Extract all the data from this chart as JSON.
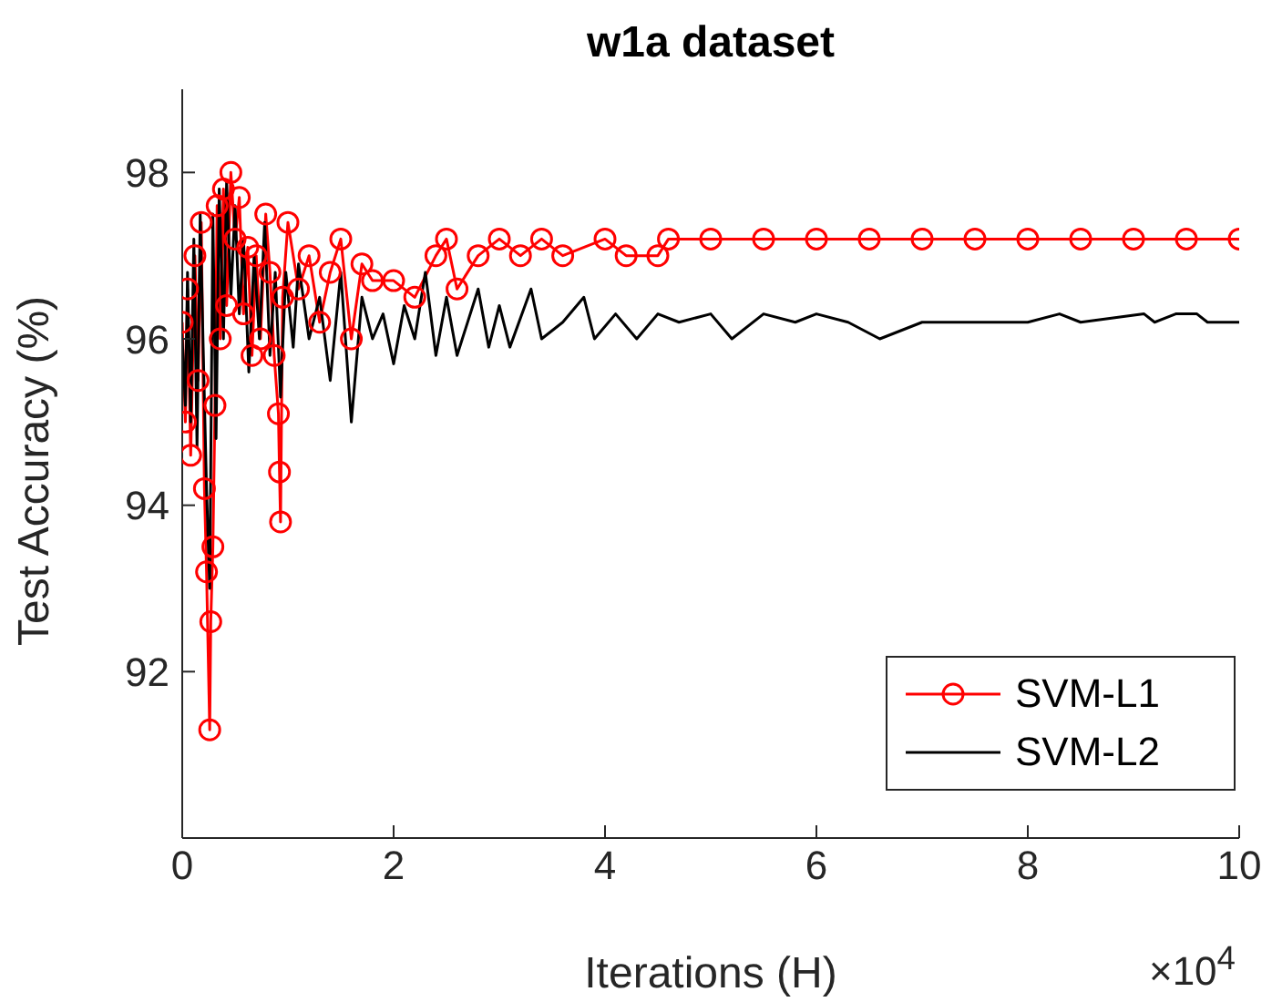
{
  "chart_data": {
    "type": "line",
    "title": "w1a dataset",
    "xlabel": "Iterations (H)",
    "ylabel": "Test Accuracy (%)",
    "xlim": [
      0,
      10
    ],
    "xticks": [
      0,
      2,
      4,
      6,
      8,
      10
    ],
    "ylim": [
      90,
      99
    ],
    "yticks": [
      92,
      94,
      96,
      98
    ],
    "grid": false,
    "legend": "bottom right",
    "annotations": [
      "×10$^{4}$"
    ],
    "series": [
      {
        "name": "SVM-L1",
        "color": "#ff0000",
        "marker": "circle",
        "x": [
          0,
          0.03,
          0.05,
          0.08,
          0.12,
          0.15,
          0.18,
          0.21,
          0.23,
          0.26,
          0.27,
          0.29,
          0.31,
          0.33,
          0.36,
          0.39,
          0.42,
          0.46,
          0.5,
          0.54,
          0.58,
          0.62,
          0.66,
          0.7,
          0.74,
          0.79,
          0.83,
          0.87,
          0.91,
          0.92,
          0.93,
          0.95,
          1.0,
          1.1,
          1.2,
          1.3,
          1.4,
          1.5,
          1.6,
          1.7,
          1.8,
          2.0,
          2.2,
          2.4,
          2.5,
          2.6,
          2.8,
          3.0,
          3.2,
          3.4,
          3.6,
          4.0,
          4.2,
          4.5,
          4.6,
          5.0,
          5.5,
          6.0,
          6.5,
          7.0,
          7.5,
          8.0,
          8.5,
          9.0,
          9.5,
          10.0
        ],
        "values": [
          96.2,
          95.0,
          96.6,
          94.6,
          97.0,
          95.5,
          97.4,
          94.2,
          93.2,
          91.3,
          92.6,
          93.5,
          95.2,
          97.6,
          96.0,
          97.8,
          96.4,
          98.0,
          97.2,
          97.7,
          96.3,
          97.1,
          95.8,
          97.0,
          96.0,
          97.5,
          96.8,
          95.8,
          95.1,
          94.4,
          93.8,
          96.5,
          97.4,
          96.6,
          97.0,
          96.2,
          96.8,
          97.2,
          96.0,
          96.9,
          96.7,
          96.7,
          96.5,
          97.0,
          97.2,
          96.6,
          97.0,
          97.2,
          97.0,
          97.2,
          97.0,
          97.2,
          97.0,
          97.0,
          97.2,
          97.2,
          97.2,
          97.2,
          97.2,
          97.2,
          97.2,
          97.2,
          97.2,
          97.2,
          97.2,
          97.2
        ]
      },
      {
        "name": "SVM-L2",
        "color": "#000000",
        "marker": "none",
        "x": [
          0,
          0.03,
          0.05,
          0.08,
          0.11,
          0.14,
          0.17,
          0.2,
          0.23,
          0.26,
          0.29,
          0.32,
          0.35,
          0.39,
          0.42,
          0.46,
          0.5,
          0.54,
          0.58,
          0.63,
          0.68,
          0.73,
          0.78,
          0.83,
          0.88,
          0.93,
          0.98,
          1.05,
          1.1,
          1.2,
          1.3,
          1.4,
          1.5,
          1.6,
          1.7,
          1.8,
          1.9,
          2.0,
          2.1,
          2.2,
          2.3,
          2.4,
          2.5,
          2.6,
          2.8,
          2.9,
          3.0,
          3.1,
          3.3,
          3.4,
          3.6,
          3.8,
          3.9,
          4.1,
          4.3,
          4.5,
          4.7,
          5.0,
          5.2,
          5.5,
          5.8,
          6.0,
          6.3,
          6.6,
          7.0,
          8.0,
          8.3,
          8.5,
          9.1,
          9.2,
          9.4,
          9.6,
          9.7,
          10.0
        ],
        "values": [
          96.0,
          95.2,
          96.8,
          95.0,
          97.2,
          94.7,
          97.5,
          95.8,
          94.2,
          93.0,
          97.5,
          94.8,
          97.8,
          96.0,
          97.9,
          96.5,
          97.6,
          96.3,
          97.2,
          95.6,
          97.0,
          96.0,
          97.4,
          95.8,
          96.8,
          95.3,
          96.8,
          95.9,
          96.9,
          96.0,
          96.5,
          95.5,
          96.8,
          95.0,
          96.5,
          96.0,
          96.3,
          95.7,
          96.4,
          96.0,
          96.8,
          95.8,
          96.5,
          95.8,
          96.6,
          95.9,
          96.4,
          95.9,
          96.6,
          96.0,
          96.2,
          96.5,
          96.0,
          96.3,
          96.0,
          96.3,
          96.2,
          96.3,
          96.0,
          96.3,
          96.2,
          96.3,
          96.2,
          96.0,
          96.2,
          96.2,
          96.3,
          96.2,
          96.3,
          96.2,
          96.3,
          96.3,
          96.2,
          96.2
        ]
      }
    ]
  }
}
